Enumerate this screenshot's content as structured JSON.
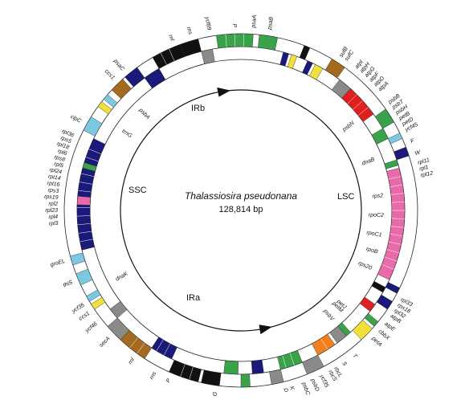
{
  "title": "Thalassiosira pseudonana",
  "genome_size": "128,814 bp",
  "regions": [
    {
      "id": "IRb",
      "label": "IRb"
    },
    {
      "id": "SSC",
      "label": "SSC"
    },
    {
      "id": "LSC",
      "label": "LSC"
    },
    {
      "id": "IRa",
      "label": "IRa"
    }
  ],
  "colors": {
    "photosystem": "#3aa24a",
    "atp": "#e0201e",
    "rubisco": "#f2e03a",
    "ribosomal": "#1a1a7a",
    "rpo": "#e86aa8",
    "trna": "#111111",
    "other": "#a46a1e",
    "orf": "#8a8a8a",
    "misc": "#7cc8e0",
    "cytb": "#f08020"
  },
  "arcs": [
    {
      "start": 352,
      "end": 4,
      "ring": "outer",
      "color": "photosystem"
    },
    {
      "start": 6,
      "end": 12,
      "ring": "outer",
      "color": "photosystem"
    },
    {
      "start": 15,
      "end": 17,
      "ring": "inner",
      "color": "ribosomal"
    },
    {
      "start": 18,
      "end": 20,
      "ring": "inner",
      "color": "rubisco"
    },
    {
      "start": 21,
      "end": 23,
      "ring": "outer",
      "color": "trna"
    },
    {
      "start": 24,
      "end": 26,
      "ring": "inner",
      "color": "ribosomal"
    },
    {
      "start": 27,
      "end": 30,
      "ring": "inner",
      "color": "rubisco"
    },
    {
      "start": 31,
      "end": 36,
      "ring": "outer",
      "color": "other"
    },
    {
      "start": 37,
      "end": 42,
      "ring": "inner",
      "color": "orf"
    },
    {
      "start": 42,
      "end": 54,
      "ring": "inner",
      "color": "atp"
    },
    {
      "start": 55,
      "end": 60,
      "ring": "outer",
      "color": "photosystem"
    },
    {
      "start": 60,
      "end": 64,
      "ring": "inner",
      "color": "photosystem"
    },
    {
      "start": 64,
      "end": 66,
      "ring": "outer",
      "color": "misc"
    },
    {
      "start": 69,
      "end": 72,
      "ring": "outer",
      "color": "ribosomal"
    },
    {
      "start": 72,
      "end": 74,
      "ring": "inner",
      "color": "photosystem"
    },
    {
      "start": 75,
      "end": 115,
      "ring": "inner",
      "color": "rpo"
    },
    {
      "start": 116,
      "end": 118,
      "ring": "outer",
      "color": "ribosomal"
    },
    {
      "start": 118,
      "end": 120,
      "ring": "inner",
      "color": "trna"
    },
    {
      "start": 121,
      "end": 124,
      "ring": "outer",
      "color": "ribosomal"
    },
    {
      "start": 125,
      "end": 128,
      "ring": "inner",
      "color": "atp"
    },
    {
      "start": 129,
      "end": 131,
      "ring": "outer",
      "color": "photosystem"
    },
    {
      "start": 132,
      "end": 137,
      "ring": "outer",
      "color": "rubisco"
    },
    {
      "start": 138,
      "end": 140,
      "ring": "inner",
      "color": "photosystem"
    },
    {
      "start": 140,
      "end": 144,
      "ring": "inner",
      "color": "orf"
    },
    {
      "start": 145,
      "end": 152,
      "ring": "inner",
      "color": "cytb"
    },
    {
      "start": 152,
      "end": 158,
      "ring": "outer",
      "color": "orf"
    },
    {
      "start": 158,
      "end": 166,
      "ring": "inner",
      "color": "photosystem"
    },
    {
      "start": 166,
      "end": 170,
      "ring": "outer",
      "color": "orf"
    },
    {
      "start": 172,
      "end": 176,
      "ring": "inner",
      "color": "ribosomal"
    },
    {
      "start": 177,
      "end": 180,
      "ring": "outer",
      "color": "photosystem"
    },
    {
      "start": 181,
      "end": 186,
      "ring": "inner",
      "color": "photosystem"
    },
    {
      "start": 187,
      "end": 193,
      "ring": "outer",
      "color": "trna"
    },
    {
      "start": 194,
      "end": 204,
      "ring": "outer",
      "color": "trna"
    },
    {
      "start": 205,
      "end": 213,
      "ring": "inner",
      "color": "ribosomal"
    },
    {
      "start": 213,
      "end": 223,
      "ring": "outer",
      "color": "other"
    },
    {
      "start": 223,
      "end": 229,
      "ring": "outer",
      "color": "orf"
    },
    {
      "start": 229,
      "end": 233,
      "ring": "inner",
      "color": "orf"
    },
    {
      "start": 236,
      "end": 238,
      "ring": "outer",
      "color": "rubisco"
    },
    {
      "start": 239,
      "end": 241,
      "ring": "outer",
      "color": "misc"
    },
    {
      "start": 245,
      "end": 249,
      "ring": "outer",
      "color": "misc"
    },
    {
      "start": 252,
      "end": 255,
      "ring": "outer",
      "color": "misc"
    },
    {
      "start": 256,
      "end": 296,
      "ring": "inner",
      "color": "ribosomal"
    },
    {
      "start": 272,
      "end": 275,
      "ring": "inner",
      "color": "rpo"
    },
    {
      "start": 285,
      "end": 287,
      "ring": "inner",
      "color": "photosystem"
    },
    {
      "start": 297,
      "end": 302,
      "ring": "outer",
      "color": "misc"
    },
    {
      "start": 306,
      "end": 308,
      "ring": "outer",
      "color": "rubisco"
    },
    {
      "start": 309,
      "end": 311,
      "ring": "outer",
      "color": "misc"
    },
    {
      "start": 313,
      "end": 318,
      "ring": "outer",
      "color": "other"
    },
    {
      "start": 319,
      "end": 324,
      "ring": "outer",
      "color": "ribosomal"
    },
    {
      "start": 324,
      "end": 330,
      "ring": "inner",
      "color": "ribosomal"
    },
    {
      "start": 330,
      "end": 340,
      "ring": "outer",
      "color": "trna"
    },
    {
      "start": 340,
      "end": 346,
      "ring": "outer",
      "color": "trna"
    },
    {
      "start": 346,
      "end": 350,
      "ring": "inner",
      "color": "orf"
    }
  ],
  "gene_labels": [
    {
      "text": "P",
      "angle": 358
    },
    {
      "text": "psaA",
      "angle": 4
    },
    {
      "text": "psaB",
      "angle": 9
    },
    {
      "text": "sufB",
      "angle": 33
    },
    {
      "text": "sufC",
      "angle": 35
    },
    {
      "text": "atpI",
      "angle": 39
    },
    {
      "text": "atpH",
      "angle": 41
    },
    {
      "text": "atpG",
      "angle": 43
    },
    {
      "text": "atpF",
      "angle": 45
    },
    {
      "text": "atpD",
      "angle": 47
    },
    {
      "text": "atpA",
      "angle": 49
    },
    {
      "text": "psbB",
      "angle": 54
    },
    {
      "text": "psbT",
      "angle": 56
    },
    {
      "text": "psbH",
      "angle": 58
    },
    {
      "text": "petB",
      "angle": 60
    },
    {
      "text": "petD",
      "angle": 62
    },
    {
      "text": "ycf45",
      "angle": 64
    },
    {
      "text": "F",
      "angle": 68
    },
    {
      "text": "W",
      "angle": 72
    },
    {
      "text": "rpl11",
      "angle": 75
    },
    {
      "text": "rpl1",
      "angle": 77
    },
    {
      "text": "rpl12",
      "angle": 79
    },
    {
      "text": "rpl33",
      "angle": 119
    },
    {
      "text": "rps18",
      "angle": 121
    },
    {
      "text": "rpl32",
      "angle": 123
    },
    {
      "text": "atpB",
      "angle": 125
    },
    {
      "text": "atpE",
      "angle": 128
    },
    {
      "text": "cbbX",
      "angle": 131
    },
    {
      "text": "petA",
      "angle": 134
    },
    {
      "text": "T",
      "angle": 142
    },
    {
      "text": "S",
      "angle": 146
    },
    {
      "text": "rbcL",
      "angle": 149
    },
    {
      "text": "rbcS",
      "angle": 151
    },
    {
      "text": "ycf35",
      "angle": 154
    },
    {
      "text": "psbD",
      "angle": 157
    },
    {
      "text": "psbC",
      "angle": 160
    },
    {
      "text": "K",
      "angle": 164
    },
    {
      "text": "D",
      "angle": 166
    },
    {
      "text": "G",
      "angle": 188
    },
    {
      "text": "P",
      "angle": 203
    },
    {
      "text": "rns",
      "angle": 208
    },
    {
      "text": "rnl",
      "angle": 216
    },
    {
      "text": "secA",
      "angle": 226
    },
    {
      "text": "ycf46",
      "angle": 232
    },
    {
      "text": "ccs1",
      "angle": 236
    },
    {
      "text": "ycf35",
      "angle": 239
    },
    {
      "text": "thiS",
      "angle": 247
    },
    {
      "text": "groEL",
      "angle": 254
    },
    {
      "text": "rpl3",
      "angle": 266
    },
    {
      "text": "rpl4",
      "angle": 268
    },
    {
      "text": "rpl23",
      "angle": 270
    },
    {
      "text": "rpl2",
      "angle": 272
    },
    {
      "text": "rps19",
      "angle": 274
    },
    {
      "text": "rps3",
      "angle": 276
    },
    {
      "text": "rpl16",
      "angle": 278
    },
    {
      "text": "rpl14",
      "angle": 280
    },
    {
      "text": "rpl24",
      "angle": 282
    },
    {
      "text": "rpl5",
      "angle": 284
    },
    {
      "text": "rps8",
      "angle": 286
    },
    {
      "text": "rpl6",
      "angle": 288
    },
    {
      "text": "rpl18",
      "angle": 290
    },
    {
      "text": "rps5",
      "angle": 292
    },
    {
      "text": "rpl36",
      "angle": 294
    },
    {
      "text": "clpC",
      "angle": 299
    },
    {
      "text": "ccs1",
      "angle": 316
    },
    {
      "text": "psaC",
      "angle": 320
    },
    {
      "text": "rns",
      "angle": 344
    },
    {
      "text": "rnl",
      "angle": 338
    },
    {
      "text": "ycf89",
      "angle": 350
    }
  ],
  "inner_labels": [
    {
      "text": "psbN",
      "angle": 52
    },
    {
      "text": "dnaB",
      "angle": 69
    },
    {
      "text": "rps2",
      "angle": 84
    },
    {
      "text": "rpoC2",
      "angle": 92
    },
    {
      "text": "rpoC1",
      "angle": 100
    },
    {
      "text": "rpoB",
      "angle": 107
    },
    {
      "text": "rps20",
      "angle": 114
    },
    {
      "text": "petJ",
      "angle": 133
    },
    {
      "text": "petM",
      "angle": 135
    },
    {
      "text": "psbV",
      "angle": 140
    },
    {
      "text": "dnaK",
      "angle": 241
    },
    {
      "text": "psbA",
      "angle": 315
    },
    {
      "text": "trnG",
      "angle": 304
    }
  ],
  "arrows": [
    {
      "id": "irb-arrow",
      "from": 290,
      "to": 355
    },
    {
      "id": "ira-arrow",
      "from": 220,
      "to": 165
    }
  ]
}
